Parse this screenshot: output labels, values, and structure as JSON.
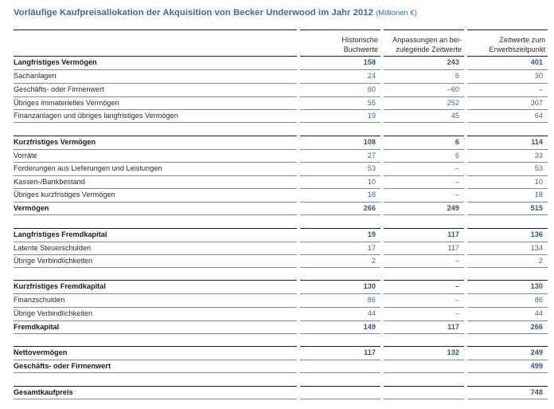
{
  "title": "Vorläufige Kaufpreisallokation der Akquisition von Becker Underwood im Jahr 2012",
  "unit": "(Millionen €)",
  "headers": {
    "col1": [
      "Historische",
      "Buchwerte"
    ],
    "col2": [
      "Anpassungen an bei-",
      "zulegende Zeitwerte"
    ],
    "col3": [
      "Zeitwerte zum",
      "Erwerbszeitpunkt"
    ]
  },
  "rows": [
    {
      "label": "Langfristiges Vermögen",
      "v1": "158",
      "v2": "243",
      "v3": "401",
      "bold": true
    },
    {
      "label": "Sachanlagen",
      "v1": "24",
      "v2": "6",
      "v3": "30"
    },
    {
      "label": "Geschäfts- oder Firmenwert",
      "v1": "60",
      "v2": "–60",
      "v3": "–"
    },
    {
      "label": "Übriges immaterielles Vermögen",
      "v1": "55",
      "v2": "252",
      "v3": "307"
    },
    {
      "label": "Finanzanlagen und übriges langfristiges Vermögen",
      "v1": "19",
      "v2": "45",
      "v3": "64"
    },
    {
      "label": "Kurzfristiges Vermögen",
      "v1": "108",
      "v2": "6",
      "v3": "114",
      "bold": true
    },
    {
      "label": "Vorräte",
      "v1": "27",
      "v2": "6",
      "v3": "33"
    },
    {
      "label": "Forderungen aus Lieferungen und Leistungen",
      "v1": "53",
      "v2": "–",
      "v3": "53"
    },
    {
      "label": "Kassen-/Bankbestand",
      "v1": "10",
      "v2": "–",
      "v3": "10"
    },
    {
      "label": "Übriges kurzfristiges Vermögen",
      "v1": "18",
      "v2": "–",
      "v3": "18"
    },
    {
      "label": "Vermögen",
      "v1": "266",
      "v2": "249",
      "v3": "515",
      "bold": true
    },
    {
      "label": "Langfristiges Fremdkapital",
      "v1": "19",
      "v2": "117",
      "v3": "136",
      "bold": true
    },
    {
      "label": "Latente Steuerschulden",
      "v1": "17",
      "v2": "117",
      "v3": "134"
    },
    {
      "label": "Übrige Verbindlichkeiten",
      "v1": "2",
      "v2": "–",
      "v3": "2"
    },
    {
      "label": "Kurzfristiges Fremdkapital",
      "v1": "130",
      "v2": "–",
      "v3": "130",
      "bold": true
    },
    {
      "label": "Finanzschulden",
      "v1": "86",
      "v2": "–",
      "v3": "86"
    },
    {
      "label": "Übrige Verbindlichkeiten",
      "v1": "44",
      "v2": "–",
      "v3": "44"
    },
    {
      "label": "Fremdkapital",
      "v1": "149",
      "v2": "117",
      "v3": "266",
      "bold": true
    },
    {
      "label": "Nettovermögen",
      "v1": "117",
      "v2": "132",
      "v3": "249",
      "bold": true
    },
    {
      "label": "Geschäfts- oder Firmenwert",
      "v1": "",
      "v2": "",
      "v3": "499",
      "bold": true
    },
    {
      "label": "Gesamtkaufpreis",
      "v1": "",
      "v2": "",
      "v3": "748",
      "bold": true
    }
  ]
}
